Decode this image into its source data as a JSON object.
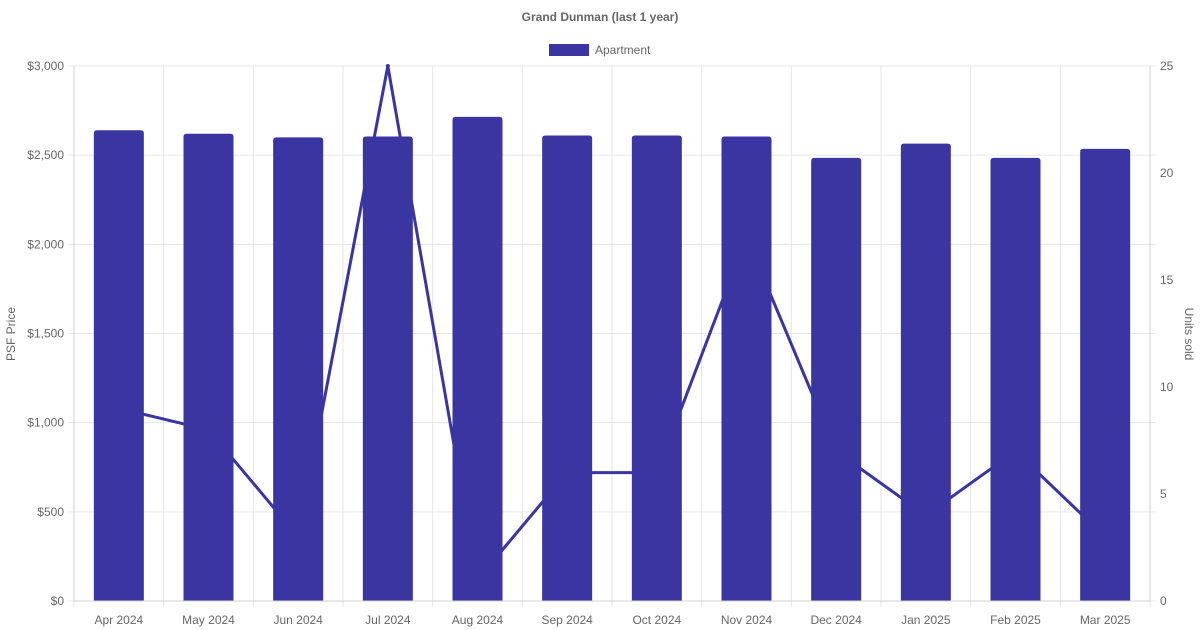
{
  "chart_data": {
    "type": "bar",
    "title": "Grand Dunman (last 1 year)",
    "categories": [
      "Apr 2024",
      "May 2024",
      "Jun 2024",
      "Jul 2024",
      "Aug 2024",
      "Sep 2024",
      "Oct 2024",
      "Nov 2024",
      "Dec 2024",
      "Jan 2025",
      "Feb 2025",
      "Mar 2025"
    ],
    "series": [
      {
        "name": "Apartment",
        "type": "bar",
        "axis": "left",
        "values": [
          2640,
          2620,
          2600,
          2605,
          2715,
          2610,
          2610,
          2605,
          2485,
          2565,
          2485,
          2535
        ]
      },
      {
        "type": "line",
        "axis": "right",
        "values": [
          9,
          8,
          3,
          25,
          1,
          6,
          6,
          17,
          7,
          4,
          7,
          3
        ]
      }
    ],
    "y_left": {
      "label": "PSF Price",
      "range": [
        0,
        3000
      ],
      "ticks": [
        0,
        500,
        1000,
        1500,
        2000,
        2500,
        3000
      ],
      "tick_labels": [
        "$0",
        "$500",
        "$1,000",
        "$1,500",
        "$2,000",
        "$2,500",
        "$3,000"
      ]
    },
    "y_right": {
      "label": "Units sold",
      "range": [
        0,
        25
      ],
      "ticks": [
        0,
        5,
        10,
        15,
        20,
        25
      ],
      "tick_labels": [
        "0",
        "5",
        "10",
        "15",
        "20",
        "25"
      ]
    },
    "grid": true,
    "legend_position": "top",
    "colors": {
      "bar": "#3a35a0",
      "line": "#3a35a0",
      "grid": "#e6e6e6",
      "text": "#666666"
    }
  }
}
